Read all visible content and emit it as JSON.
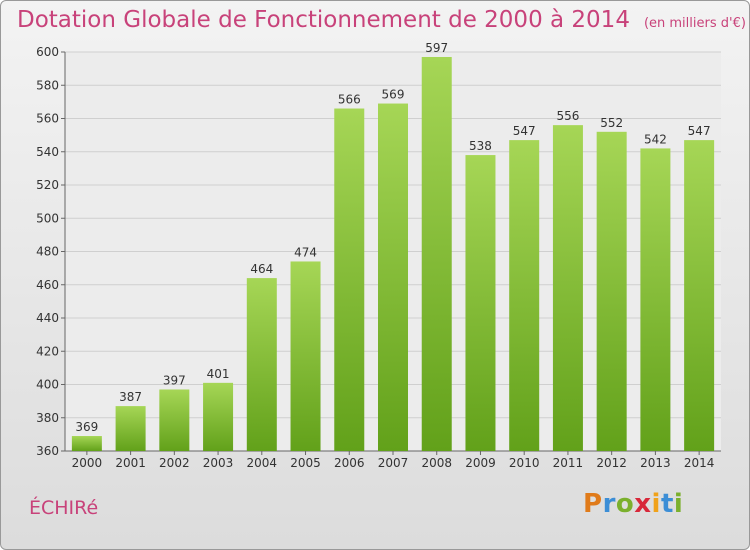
{
  "header": {
    "title": "Dotation Globale de Fonctionnement de 2000 à 2014",
    "unit": "(en milliers d'€)"
  },
  "footer": {
    "commune": "ÉCHIRé",
    "brand": "Proxiti",
    "brand_colors": [
      "#e07b1a",
      "#3c8ed6",
      "#7bb02d",
      "#d8283a",
      "#f0a21a",
      "#3c8ed6",
      "#7bb02d"
    ]
  },
  "colors": {
    "title": "#c8427a",
    "bar_light": "#a6d656",
    "bar_dark": "#62a11a"
  },
  "chart_data": {
    "type": "bar",
    "categories": [
      "2000",
      "2001",
      "2002",
      "2003",
      "2004",
      "2005",
      "2006",
      "2007",
      "2008",
      "2009",
      "2010",
      "2011",
      "2012",
      "2013",
      "2014"
    ],
    "values": [
      369,
      387,
      397,
      401,
      464,
      474,
      566,
      569,
      597,
      538,
      547,
      556,
      552,
      542,
      547
    ],
    "title": "Dotation Globale de Fonctionnement de 2000 à 2014",
    "subtitle": "(en milliers d'€)",
    "ylim": [
      360,
      600
    ],
    "yticks": [
      360,
      380,
      400,
      420,
      440,
      460,
      480,
      500,
      520,
      540,
      560,
      580,
      600
    ],
    "grid": true,
    "data_labels": true
  }
}
